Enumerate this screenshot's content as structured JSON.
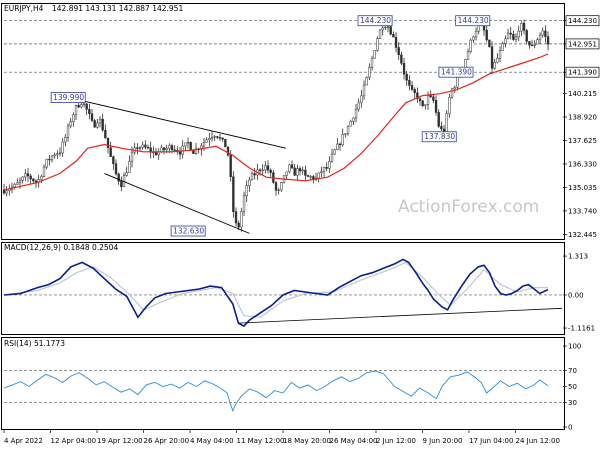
{
  "chart_data": [
    {
      "type": "candlestick",
      "title": "EURJPY,H4",
      "ohlc_label": "142.891 143.131 142.887 142.951",
      "y_ticks": [
        "144.230",
        "142.951",
        "141.390",
        "140.215",
        "138.920",
        "137.625",
        "136.330",
        "135.035",
        "133.740",
        "132.445"
      ],
      "ylim": [
        132.3,
        144.6
      ],
      "price_tags": [
        {
          "label": "144.230",
          "value": 144.23,
          "color": "#ffffff"
        },
        {
          "label": "142.951",
          "value": 142.951,
          "color": "#ffffff"
        },
        {
          "label": "141.390",
          "value": 141.39,
          "color": "#ffffff"
        }
      ],
      "dashed_levels": [
        144.23,
        142.951,
        141.39
      ],
      "annotations": [
        {
          "label": "139.990",
          "x": 0.115,
          "y": 139.99
        },
        {
          "label": "132.630",
          "x": 0.33,
          "y": 132.63
        },
        {
          "label": "144.230",
          "x": 0.665,
          "y": 144.23
        },
        {
          "label": "137.830",
          "x": 0.78,
          "y": 137.83
        },
        {
          "label": "141.390",
          "x": 0.81,
          "y": 141.39
        },
        {
          "label": "144.230",
          "x": 0.84,
          "y": 144.23
        }
      ],
      "price_path": [
        [
          0.0,
          134.9
        ],
        [
          0.02,
          135.1
        ],
        [
          0.04,
          135.7
        ],
        [
          0.06,
          135.3
        ],
        [
          0.075,
          136.4
        ],
        [
          0.09,
          136.9
        ],
        [
          0.1,
          137.0
        ],
        [
          0.11,
          137.8
        ],
        [
          0.12,
          138.8
        ],
        [
          0.13,
          139.5
        ],
        [
          0.14,
          139.8
        ],
        [
          0.15,
          139.2
        ],
        [
          0.16,
          138.4
        ],
        [
          0.17,
          138.9
        ],
        [
          0.18,
          138.0
        ],
        [
          0.19,
          136.8
        ],
        [
          0.2,
          135.8
        ],
        [
          0.21,
          135.2
        ],
        [
          0.22,
          136.0
        ],
        [
          0.23,
          136.9
        ],
        [
          0.24,
          137.3
        ],
        [
          0.255,
          137.2
        ],
        [
          0.27,
          136.9
        ],
        [
          0.285,
          137.1
        ],
        [
          0.3,
          137.3
        ],
        [
          0.315,
          137.0
        ],
        [
          0.33,
          137.5
        ],
        [
          0.34,
          137.0
        ],
        [
          0.35,
          137.3
        ],
        [
          0.36,
          137.6
        ],
        [
          0.37,
          137.9
        ],
        [
          0.38,
          138.0
        ],
        [
          0.39,
          137.6
        ],
        [
          0.4,
          137.2
        ],
        [
          0.405,
          136.0
        ],
        [
          0.41,
          133.9
        ],
        [
          0.415,
          133.0
        ],
        [
          0.42,
          132.8
        ],
        [
          0.43,
          134.5
        ],
        [
          0.44,
          135.5
        ],
        [
          0.45,
          135.8
        ],
        [
          0.46,
          136.1
        ],
        [
          0.47,
          136.2
        ],
        [
          0.48,
          135.6
        ],
        [
          0.49,
          134.6
        ],
        [
          0.5,
          135.4
        ],
        [
          0.51,
          136.2
        ],
        [
          0.52,
          135.8
        ],
        [
          0.53,
          136.1
        ],
        [
          0.54,
          135.6
        ],
        [
          0.55,
          135.6
        ],
        [
          0.56,
          135.5
        ],
        [
          0.57,
          136.0
        ],
        [
          0.58,
          136.1
        ],
        [
          0.59,
          136.9
        ],
        [
          0.6,
          137.4
        ],
        [
          0.61,
          138.0
        ],
        [
          0.62,
          138.6
        ],
        [
          0.63,
          139.3
        ],
        [
          0.64,
          140.0
        ],
        [
          0.65,
          141.0
        ],
        [
          0.66,
          142.2
        ],
        [
          0.67,
          143.4
        ],
        [
          0.68,
          144.1
        ],
        [
          0.69,
          143.9
        ],
        [
          0.7,
          143.1
        ],
        [
          0.71,
          142.2
        ],
        [
          0.72,
          141.0
        ],
        [
          0.73,
          140.3
        ],
        [
          0.74,
          140.1
        ],
        [
          0.75,
          139.4
        ],
        [
          0.76,
          140.0
        ],
        [
          0.77,
          139.8
        ],
        [
          0.78,
          138.3
        ],
        [
          0.79,
          138.0
        ],
        [
          0.795,
          139.4
        ],
        [
          0.8,
          140.3
        ],
        [
          0.81,
          140.8
        ],
        [
          0.82,
          141.6
        ],
        [
          0.83,
          142.4
        ],
        [
          0.84,
          143.4
        ],
        [
          0.85,
          144.0
        ],
        [
          0.86,
          143.7
        ],
        [
          0.87,
          142.6
        ],
        [
          0.875,
          141.6
        ],
        [
          0.885,
          142.2
        ],
        [
          0.895,
          142.9
        ],
        [
          0.905,
          143.6
        ],
        [
          0.915,
          143.0
        ],
        [
          0.925,
          144.1
        ],
        [
          0.935,
          143.3
        ],
        [
          0.945,
          142.7
        ],
        [
          0.955,
          143.2
        ],
        [
          0.965,
          143.7
        ],
        [
          0.975,
          142.951
        ]
      ],
      "ma_path": [
        [
          0.0,
          134.9
        ],
        [
          0.06,
          135.3
        ],
        [
          0.1,
          135.8
        ],
        [
          0.13,
          136.5
        ],
        [
          0.15,
          137.2
        ],
        [
          0.18,
          137.4
        ],
        [
          0.21,
          137.2
        ],
        [
          0.25,
          137.0
        ],
        [
          0.3,
          137.0
        ],
        [
          0.34,
          137.1
        ],
        [
          0.38,
          137.3
        ],
        [
          0.41,
          136.8
        ],
        [
          0.44,
          136.1
        ],
        [
          0.47,
          135.6
        ],
        [
          0.5,
          135.5
        ],
        [
          0.54,
          135.4
        ],
        [
          0.58,
          135.6
        ],
        [
          0.61,
          136.1
        ],
        [
          0.64,
          136.9
        ],
        [
          0.67,
          137.9
        ],
        [
          0.7,
          139.0
        ],
        [
          0.72,
          139.7
        ],
        [
          0.75,
          140.1
        ],
        [
          0.78,
          140.2
        ],
        [
          0.81,
          140.4
        ],
        [
          0.84,
          140.8
        ],
        [
          0.87,
          141.3
        ],
        [
          0.9,
          141.6
        ],
        [
          0.93,
          141.9
        ],
        [
          0.96,
          142.2
        ],
        [
          0.975,
          142.4
        ]
      ],
      "trend_lines": [
        {
          "from": [
            0.115,
            140.0
          ],
          "to": [
            0.505,
            137.2
          ]
        },
        {
          "from": [
            0.18,
            135.8
          ],
          "to": [
            0.44,
            132.5
          ]
        }
      ]
    },
    {
      "type": "line",
      "title": "MACD(12,26,9) 0.1848 0.2504",
      "y_ticks": [
        "1.313",
        "0.00",
        "-1.1161"
      ],
      "ylim": [
        -1.25,
        1.45
      ],
      "zero_level": 0.0,
      "macd": [
        [
          0.0,
          0.0
        ],
        [
          0.03,
          0.05
        ],
        [
          0.06,
          0.25
        ],
        [
          0.08,
          0.35
        ],
        [
          0.1,
          0.55
        ],
        [
          0.12,
          0.95
        ],
        [
          0.14,
          1.1
        ],
        [
          0.16,
          0.9
        ],
        [
          0.18,
          0.55
        ],
        [
          0.2,
          0.2
        ],
        [
          0.22,
          -0.05
        ],
        [
          0.24,
          -0.75
        ],
        [
          0.255,
          -0.4
        ],
        [
          0.27,
          -0.1
        ],
        [
          0.29,
          0.05
        ],
        [
          0.31,
          0.1
        ],
        [
          0.33,
          0.15
        ],
        [
          0.35,
          0.2
        ],
        [
          0.37,
          0.3
        ],
        [
          0.39,
          0.25
        ],
        [
          0.41,
          -0.3
        ],
        [
          0.42,
          -0.95
        ],
        [
          0.43,
          -1.05
        ],
        [
          0.44,
          -0.85
        ],
        [
          0.46,
          -0.6
        ],
        [
          0.48,
          -0.35
        ],
        [
          0.5,
          0.0
        ],
        [
          0.52,
          0.15
        ],
        [
          0.54,
          0.1
        ],
        [
          0.56,
          0.05
        ],
        [
          0.58,
          0.0
        ],
        [
          0.6,
          0.25
        ],
        [
          0.62,
          0.45
        ],
        [
          0.64,
          0.65
        ],
        [
          0.66,
          0.75
        ],
        [
          0.68,
          0.9
        ],
        [
          0.7,
          1.05
        ],
        [
          0.715,
          1.2
        ],
        [
          0.725,
          1.1
        ],
        [
          0.74,
          0.7
        ],
        [
          0.75,
          0.4
        ],
        [
          0.76,
          0.15
        ],
        [
          0.77,
          -0.15
        ],
        [
          0.785,
          -0.4
        ],
        [
          0.795,
          -0.5
        ],
        [
          0.805,
          -0.15
        ],
        [
          0.82,
          0.3
        ],
        [
          0.835,
          0.7
        ],
        [
          0.85,
          0.95
        ],
        [
          0.86,
          1.0
        ],
        [
          0.87,
          0.75
        ],
        [
          0.88,
          0.3
        ],
        [
          0.89,
          0.05
        ],
        [
          0.9,
          0.0
        ],
        [
          0.91,
          0.05
        ],
        [
          0.92,
          0.15
        ],
        [
          0.93,
          0.3
        ],
        [
          0.94,
          0.35
        ],
        [
          0.95,
          0.2
        ],
        [
          0.96,
          0.05
        ],
        [
          0.975,
          0.18
        ]
      ],
      "signal": [
        [
          0.0,
          0.0
        ],
        [
          0.06,
          0.15
        ],
        [
          0.1,
          0.4
        ],
        [
          0.13,
          0.75
        ],
        [
          0.16,
          0.95
        ],
        [
          0.19,
          0.6
        ],
        [
          0.22,
          0.1
        ],
        [
          0.25,
          -0.5
        ],
        [
          0.28,
          -0.25
        ],
        [
          0.32,
          0.05
        ],
        [
          0.38,
          0.25
        ],
        [
          0.41,
          0.05
        ],
        [
          0.43,
          -0.7
        ],
        [
          0.46,
          -0.75
        ],
        [
          0.5,
          -0.2
        ],
        [
          0.54,
          0.05
        ],
        [
          0.59,
          0.1
        ],
        [
          0.64,
          0.5
        ],
        [
          0.69,
          0.85
        ],
        [
          0.72,
          1.1
        ],
        [
          0.75,
          0.6
        ],
        [
          0.78,
          0.0
        ],
        [
          0.8,
          -0.35
        ],
        [
          0.83,
          0.2
        ],
        [
          0.86,
          0.85
        ],
        [
          0.89,
          0.35
        ],
        [
          0.92,
          0.1
        ],
        [
          0.95,
          0.25
        ],
        [
          0.975,
          0.25
        ]
      ],
      "trend_line": {
        "from": [
          0.42,
          -0.95
        ],
        "to": [
          1.0,
          -0.45
        ]
      }
    },
    {
      "type": "line",
      "title": "RSI(14) 51.1773",
      "y_ticks": [
        "100",
        "70",
        "50",
        "30",
        "0"
      ],
      "ylim": [
        0,
        100
      ],
      "levels": [
        70,
        30
      ],
      "rsi": [
        [
          0.0,
          48
        ],
        [
          0.015,
          52
        ],
        [
          0.03,
          56
        ],
        [
          0.045,
          50
        ],
        [
          0.06,
          58
        ],
        [
          0.075,
          65
        ],
        [
          0.09,
          61
        ],
        [
          0.105,
          55
        ],
        [
          0.12,
          63
        ],
        [
          0.135,
          67
        ],
        [
          0.15,
          60
        ],
        [
          0.165,
          52
        ],
        [
          0.18,
          56
        ],
        [
          0.195,
          49
        ],
        [
          0.21,
          43
        ],
        [
          0.225,
          47
        ],
        [
          0.24,
          40
        ],
        [
          0.255,
          52
        ],
        [
          0.27,
          55
        ],
        [
          0.285,
          50
        ],
        [
          0.3,
          53
        ],
        [
          0.315,
          48
        ],
        [
          0.33,
          55
        ],
        [
          0.345,
          50
        ],
        [
          0.36,
          57
        ],
        [
          0.375,
          53
        ],
        [
          0.39,
          47
        ],
        [
          0.4,
          42
        ],
        [
          0.405,
          30
        ],
        [
          0.41,
          20
        ],
        [
          0.415,
          28
        ],
        [
          0.425,
          38
        ],
        [
          0.44,
          47
        ],
        [
          0.455,
          43
        ],
        [
          0.47,
          36
        ],
        [
          0.485,
          45
        ],
        [
          0.5,
          42
        ],
        [
          0.515,
          55
        ],
        [
          0.53,
          48
        ],
        [
          0.545,
          52
        ],
        [
          0.56,
          45
        ],
        [
          0.575,
          50
        ],
        [
          0.59,
          57
        ],
        [
          0.605,
          62
        ],
        [
          0.62,
          56
        ],
        [
          0.635,
          60
        ],
        [
          0.65,
          67
        ],
        [
          0.665,
          69
        ],
        [
          0.68,
          66
        ],
        [
          0.69,
          58
        ],
        [
          0.7,
          50
        ],
        [
          0.715,
          44
        ],
        [
          0.73,
          38
        ],
        [
          0.745,
          48
        ],
        [
          0.76,
          42
        ],
        [
          0.775,
          35
        ],
        [
          0.785,
          50
        ],
        [
          0.8,
          62
        ],
        [
          0.815,
          64
        ],
        [
          0.83,
          68
        ],
        [
          0.845,
          61
        ],
        [
          0.855,
          55
        ],
        [
          0.865,
          42
        ],
        [
          0.875,
          48
        ],
        [
          0.89,
          57
        ],
        [
          0.905,
          50
        ],
        [
          0.92,
          54
        ],
        [
          0.935,
          47
        ],
        [
          0.95,
          52
        ],
        [
          0.96,
          58
        ],
        [
          0.975,
          51
        ]
      ]
    }
  ],
  "x_axis_labels": [
    "4 Apr 2022",
    "12 Apr 04:00",
    "19 Apr 12:00",
    "26 Apr 20:00",
    "4 May 04:00",
    "11 May 12:00",
    "18 May 20:00",
    "26 May 04:00",
    "2 Jun 12:00",
    "9 Jun 20:00",
    "17 Jun 04:00",
    "24 Jun 12:00"
  ],
  "watermark": "ActionForex.com",
  "colors": {
    "candle_up": "#2c2c2c",
    "candle_down": "#2c2c2c",
    "ma": "#e0261d",
    "trendline": "#000000",
    "macd": "#0a1e8a",
    "signal": "#bfc7d6",
    "rsi": "#2a8fd6",
    "grid_dashed": "#555555",
    "annotation_border": "#3a3aa0",
    "annotation_text": "#3a3aa0",
    "watermark": "#c7c7c7"
  }
}
